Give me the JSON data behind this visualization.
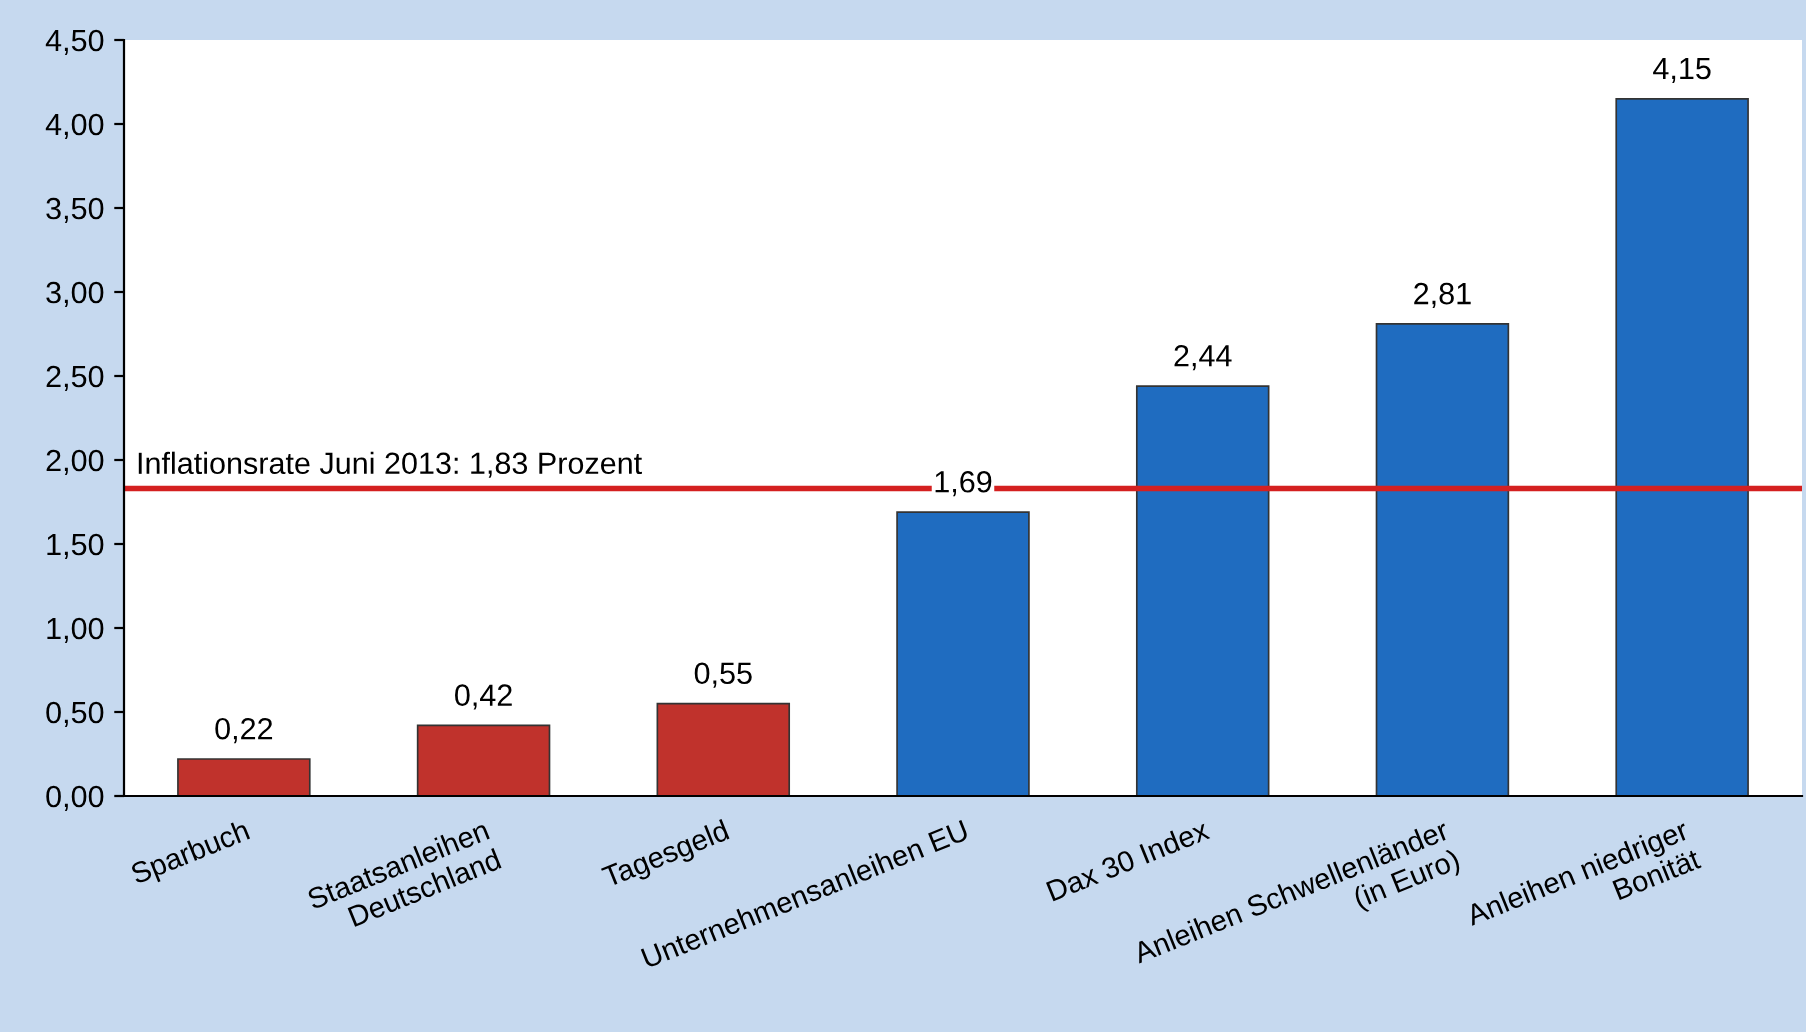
{
  "chart_data": {
    "type": "bar",
    "categories": [
      "Sparbuch",
      "Staatsanleihen\nDeutschland",
      "Tagesgeld",
      "Unternehmensanleihen EU",
      "Dax 30 Index",
      "Anleihen Schwellenländer\n(in Euro)",
      "Anleihen niedriger\nBonität"
    ],
    "values": [
      0.22,
      0.42,
      0.55,
      1.69,
      2.44,
      2.81,
      4.15
    ],
    "value_labels": [
      "0,22",
      "0,42",
      "0,55",
      "1,69",
      "2,44",
      "2,81",
      "4,15"
    ],
    "colors": [
      "#c0322c",
      "#c0322c",
      "#c0322c",
      "#1f6cc0",
      "#1f6cc0",
      "#1f6cc0",
      "#1f6cc0"
    ],
    "ylim": [
      0,
      4.5
    ],
    "yticks": [
      {
        "value": 0,
        "label": "0,00"
      },
      {
        "value": 0.5,
        "label": "0,50"
      },
      {
        "value": 1,
        "label": "1,00"
      },
      {
        "value": 1.5,
        "label": "1,50"
      },
      {
        "value": 2,
        "label": "2,00"
      },
      {
        "value": 2.5,
        "label": "2,50"
      },
      {
        "value": 3,
        "label": "3,00"
      },
      {
        "value": 3.5,
        "label": "3,50"
      },
      {
        "value": 4,
        "label": "4,00"
      },
      {
        "value": 4.5,
        "label": "4,50"
      }
    ],
    "ref_lines": [
      {
        "axis": "y",
        "value": 1.83,
        "label": "Inflationsrate Juni 2013: 1,83 Prozent",
        "color": "#d42020"
      }
    ],
    "grid": false
  }
}
